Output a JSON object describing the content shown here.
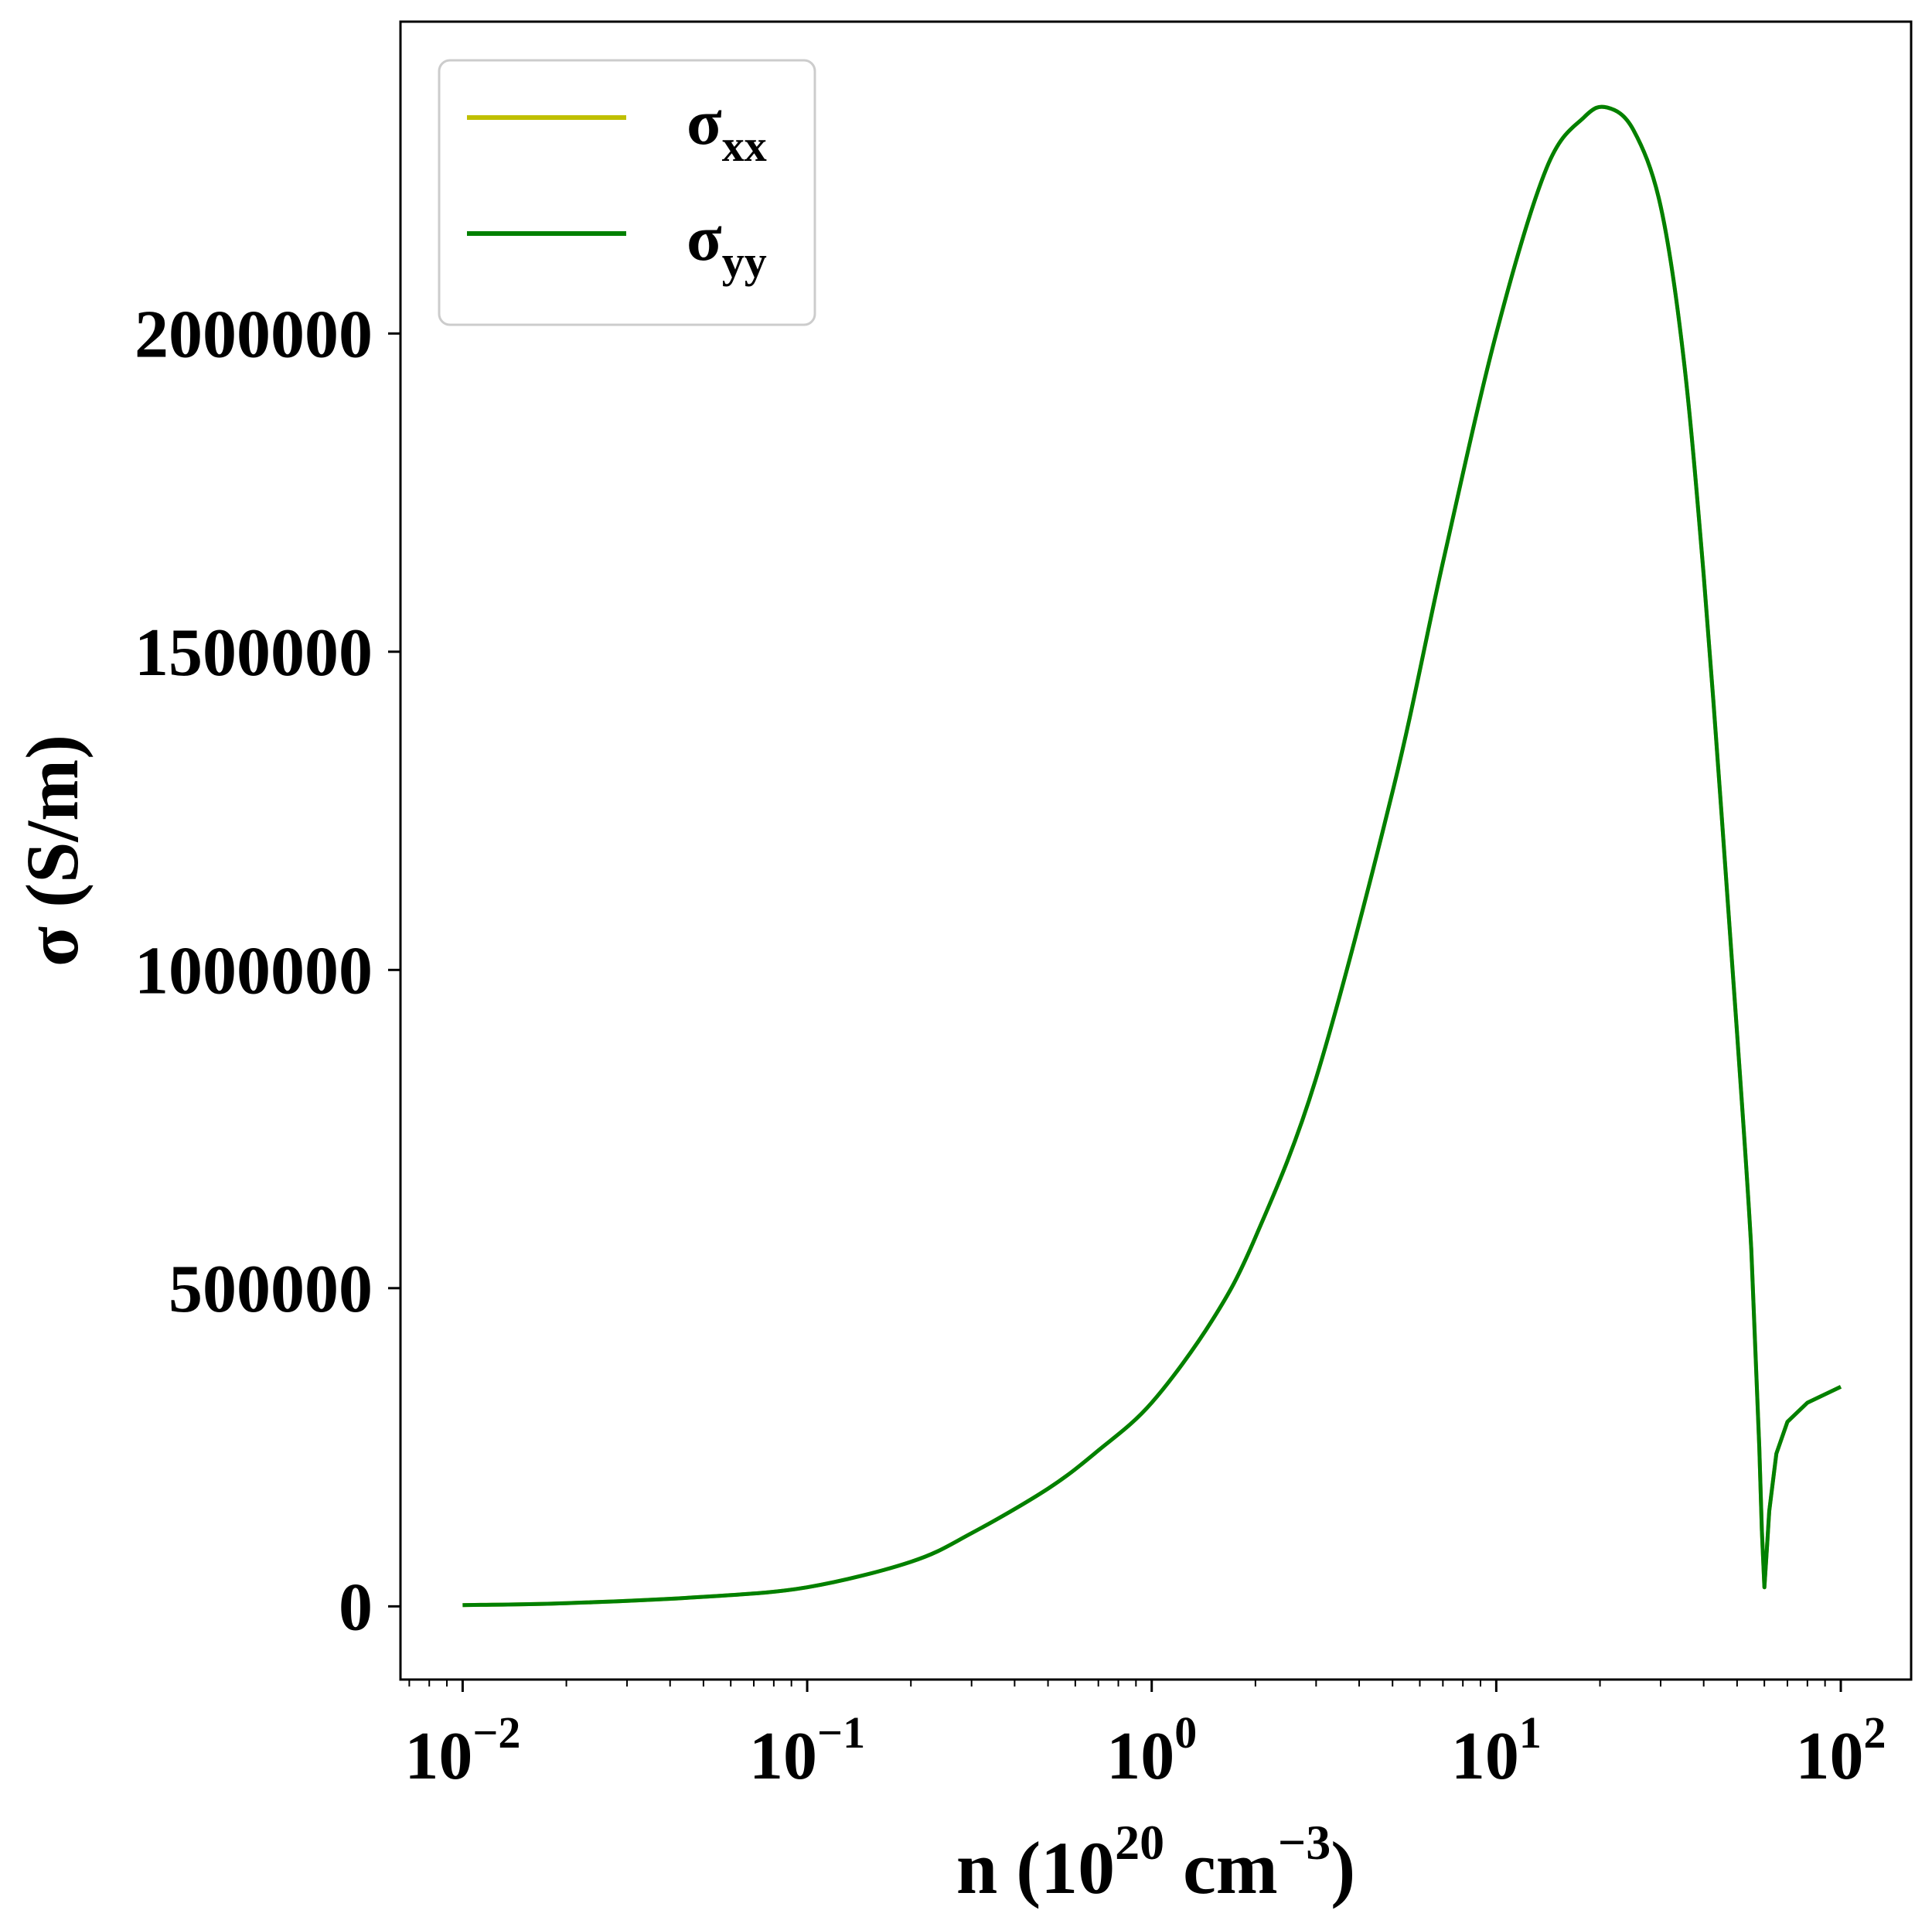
{
  "chart_data": {
    "type": "line",
    "xscale": "log",
    "xlim": [
      0.0066,
      160
    ],
    "ylim": [
      -115000,
      2490000
    ],
    "xlabel": {
      "base": "n (10",
      "exp1": "20",
      "mid": " cm",
      "exp2": "−3",
      "end": ")"
    },
    "ylabel": "σ (S/m)",
    "x_ticks": [
      {
        "value": 0.01,
        "base": "10",
        "exp": "−2"
      },
      {
        "value": 0.1,
        "base": "10",
        "exp": "−1"
      },
      {
        "value": 1,
        "base": "10",
        "exp": "0"
      },
      {
        "value": 10,
        "base": "10",
        "exp": "1"
      },
      {
        "value": 100,
        "base": "10",
        "exp": "2"
      }
    ],
    "y_ticks": [
      {
        "value": 0,
        "label": "0"
      },
      {
        "value": 500000,
        "label": "500000"
      },
      {
        "value": 1000000,
        "label": "1000000"
      },
      {
        "value": 1500000,
        "label": "1500000"
      },
      {
        "value": 2000000,
        "label": "2000000"
      }
    ],
    "grid": false,
    "legend_position": "top-left",
    "series": [
      {
        "name": "σxx",
        "name_base": "σ",
        "name_sub": "xx",
        "color": "#bfbf00",
        "x": [
          0.01,
          0.02,
          0.05,
          0.1,
          0.2,
          0.3,
          0.5,
          0.7,
          1.0,
          1.5,
          2.0,
          3.0,
          5.0,
          7.0,
          10.0,
          14.0,
          18.0,
          21.0,
          25.0,
          30.0,
          35.0,
          40.0,
          45.0,
          50.0,
          55.0,
          58.0,
          59.0,
          60.0,
          61.0,
          62.0,
          65.0,
          70.0,
          80.0,
          100.0
        ],
        "y": [
          2000,
          5000,
          15000,
          30000,
          70000,
          115000,
          185000,
          245000,
          320000,
          450000,
          580000,
          830000,
          1280000,
          1640000,
          2000000,
          2260000,
          2340000,
          2355000,
          2320000,
          2200000,
          1960000,
          1620000,
          1250000,
          900000,
          560000,
          250000,
          120000,
          30000,
          90000,
          150000,
          240000,
          290000,
          320000,
          345000
        ]
      },
      {
        "name": "σyy",
        "name_base": "σ",
        "name_sub": "yy",
        "color": "#008000",
        "x": [
          0.01,
          0.02,
          0.05,
          0.1,
          0.2,
          0.3,
          0.5,
          0.7,
          1.0,
          1.5,
          2.0,
          3.0,
          5.0,
          7.0,
          10.0,
          14.0,
          18.0,
          21.0,
          25.0,
          30.0,
          35.0,
          40.0,
          45.0,
          50.0,
          55.0,
          58.0,
          59.0,
          60.0,
          61.0,
          62.0,
          65.0,
          70.0,
          80.0,
          100.0
        ],
        "y": [
          2000,
          5000,
          15000,
          30000,
          70000,
          115000,
          185000,
          245000,
          320000,
          450000,
          580000,
          830000,
          1280000,
          1640000,
          2000000,
          2260000,
          2340000,
          2355000,
          2320000,
          2200000,
          1960000,
          1620000,
          1250000,
          900000,
          560000,
          250000,
          120000,
          30000,
          90000,
          150000,
          240000,
          290000,
          320000,
          345000
        ]
      }
    ]
  }
}
